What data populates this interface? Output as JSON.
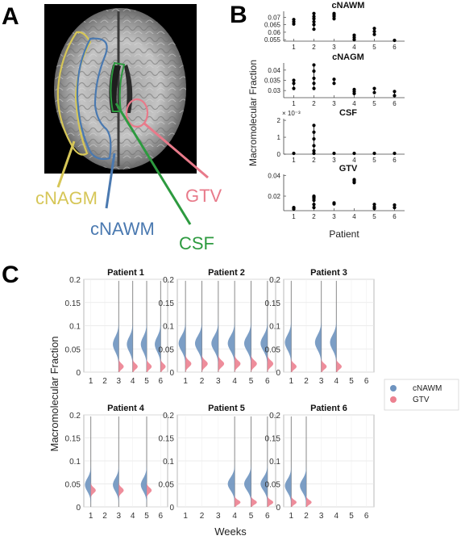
{
  "panel_labels": {
    "a": "A",
    "b": "B",
    "c": "C"
  },
  "panel_a": {
    "labels": [
      {
        "key": "cNAGM",
        "text": "cNAGM",
        "color": "#d6c657"
      },
      {
        "key": "cNAWM",
        "text": "cNAWM",
        "color": "#4a79b0"
      },
      {
        "key": "CSF",
        "text": "CSF",
        "color": "#2d9a3f"
      },
      {
        "key": "GTV",
        "text": "GTV",
        "color": "#e87a8a"
      }
    ]
  },
  "chart_data": [
    {
      "panel": "B",
      "type": "scatter",
      "ylabel": "Macromolecular Fraction",
      "xlabel": "Patient",
      "x_ticks": [
        "1",
        "2",
        "3",
        "4",
        "5",
        "6"
      ],
      "subplots": [
        {
          "title": "cNAWM",
          "ylim": [
            0.054,
            0.074
          ],
          "yticks": [
            "0.055",
            "0.06",
            "0.065",
            "0.07"
          ],
          "ytick_values": [
            0.055,
            0.06,
            0.065,
            0.07
          ],
          "exponent": "",
          "points": [
            [
              1,
              0.0655
            ],
            [
              1,
              0.067
            ],
            [
              1,
              0.0685
            ],
            [
              2,
              0.062
            ],
            [
              2,
              0.065
            ],
            [
              2,
              0.067
            ],
            [
              2,
              0.069
            ],
            [
              2,
              0.0705
            ],
            [
              2,
              0.0725
            ],
            [
              3,
              0.069
            ],
            [
              3,
              0.0705
            ],
            [
              3,
              0.0715
            ],
            [
              3,
              0.0725
            ],
            [
              4,
              0.055
            ],
            [
              4,
              0.0565
            ],
            [
              4,
              0.058
            ],
            [
              5,
              0.0585
            ],
            [
              5,
              0.0605
            ],
            [
              5,
              0.0625
            ],
            [
              6,
              0.054
            ]
          ]
        },
        {
          "title": "cNAGM",
          "ylim": [
            0.0265,
            0.0435
          ],
          "yticks": [
            "0.03",
            "0.035",
            "0.04"
          ],
          "ytick_values": [
            0.03,
            0.035,
            0.04
          ],
          "exponent": "",
          "points": [
            [
              1,
              0.031
            ],
            [
              1,
              0.0335
            ],
            [
              1,
              0.035
            ],
            [
              2,
              0.031
            ],
            [
              2,
              0.0335
            ],
            [
              2,
              0.036
            ],
            [
              2,
              0.0395
            ],
            [
              2,
              0.0425
            ],
            [
              3,
              0.0335
            ],
            [
              3,
              0.0355
            ],
            [
              4,
              0.0285
            ],
            [
              4,
              0.0295
            ],
            [
              4,
              0.0305
            ],
            [
              5,
              0.029
            ],
            [
              5,
              0.031
            ],
            [
              6,
              0.0275
            ],
            [
              6,
              0.0295
            ]
          ]
        },
        {
          "title": "CSF",
          "ylim": [
            0,
            0.0021
          ],
          "yticks": [
            "0",
            "1",
            "2"
          ],
          "ytick_values": [
            0,
            0.001,
            0.002
          ],
          "exponent": "× 10⁻³",
          "points": [
            [
              1,
              2e-05
            ],
            [
              2,
              2e-05
            ],
            [
              2,
              0.0002
            ],
            [
              2,
              0.0005
            ],
            [
              2,
              0.0009
            ],
            [
              2,
              0.0013
            ],
            [
              2,
              0.0017
            ],
            [
              3,
              2e-05
            ],
            [
              4,
              2e-05
            ],
            [
              5,
              2e-05
            ],
            [
              6,
              2e-05
            ]
          ]
        },
        {
          "title": "GTV",
          "ylim": [
            0.006,
            0.041
          ],
          "yticks": [
            "0.02",
            "0.04"
          ],
          "ytick_values": [
            0.02,
            0.04
          ],
          "exponent": "",
          "points": [
            [
              1,
              0.0075
            ],
            [
              1,
              0.0085
            ],
            [
              1,
              0.009
            ],
            [
              2,
              0.009
            ],
            [
              2,
              0.012
            ],
            [
              2,
              0.016
            ],
            [
              2,
              0.018
            ],
            [
              2,
              0.019
            ],
            [
              2,
              0.0195
            ],
            [
              2,
              0.02
            ],
            [
              3,
              0.0125
            ],
            [
              3,
              0.0135
            ],
            [
              4,
              0.033
            ],
            [
              4,
              0.034
            ],
            [
              4,
              0.0355
            ],
            [
              4,
              0.036
            ],
            [
              5,
              0.008
            ],
            [
              5,
              0.0095
            ],
            [
              5,
              0.012
            ],
            [
              6,
              0.009
            ],
            [
              6,
              0.0115
            ]
          ]
        }
      ]
    },
    {
      "panel": "C",
      "type": "area",
      "ylabel": "Macromolecular Fraction",
      "xlabel": "Weeks",
      "x_ticks": [
        "1",
        "2",
        "3",
        "4",
        "5",
        "6"
      ],
      "ylim": [
        0,
        0.2
      ],
      "yticks": [
        "0",
        "0.05",
        "0.1",
        "0.15",
        "0.2"
      ],
      "ytick_values": [
        0,
        0.05,
        0.1,
        0.15,
        0.2
      ],
      "grid": true,
      "legend_position": "right",
      "series": [
        {
          "name": "cNAWM",
          "color": "#6e93bf"
        },
        {
          "name": "GTV",
          "color": "#ec8190"
        }
      ],
      "patients": [
        {
          "title": "Patient 1",
          "weeks": [
            {
              "week": 3,
              "cnawm_peak": 0.06,
              "cnawm_spread": 0.016,
              "gtv_peak": 0.012,
              "gtv_spread": 0.006
            },
            {
              "week": 4,
              "cnawm_peak": 0.06,
              "cnawm_spread": 0.016,
              "gtv_peak": 0.012,
              "gtv_spread": 0.006
            },
            {
              "week": 5,
              "cnawm_peak": 0.06,
              "cnawm_spread": 0.016,
              "gtv_peak": 0.012,
              "gtv_spread": 0.006
            },
            {
              "week": 6,
              "cnawm_peak": 0.06,
              "cnawm_spread": 0.016,
              "gtv_peak": 0.012,
              "gtv_spread": 0.006
            }
          ]
        },
        {
          "title": "Patient 2",
          "weeks": [
            {
              "week": 1,
              "cnawm_peak": 0.062,
              "cnawm_spread": 0.016,
              "gtv_peak": 0.018,
              "gtv_spread": 0.007
            },
            {
              "week": 2,
              "cnawm_peak": 0.062,
              "cnawm_spread": 0.016,
              "gtv_peak": 0.018,
              "gtv_spread": 0.007
            },
            {
              "week": 3,
              "cnawm_peak": 0.062,
              "cnawm_spread": 0.016,
              "gtv_peak": 0.018,
              "gtv_spread": 0.007
            },
            {
              "week": 4,
              "cnawm_peak": 0.062,
              "cnawm_spread": 0.016,
              "gtv_peak": 0.018,
              "gtv_spread": 0.007
            },
            {
              "week": 5,
              "cnawm_peak": 0.062,
              "cnawm_spread": 0.016,
              "gtv_peak": 0.018,
              "gtv_spread": 0.007
            },
            {
              "week": 6,
              "cnawm_peak": 0.062,
              "cnawm_spread": 0.016,
              "gtv_peak": 0.018,
              "gtv_spread": 0.007
            }
          ]
        },
        {
          "title": "Patient 3",
          "weeks": [
            {
              "week": 1,
              "cnawm_peak": 0.064,
              "cnawm_spread": 0.016,
              "gtv_peak": 0.012,
              "gtv_spread": 0.006
            },
            {
              "week": 3,
              "cnawm_peak": 0.064,
              "cnawm_spread": 0.016,
              "gtv_peak": 0.012,
              "gtv_spread": 0.006
            },
            {
              "week": 4,
              "cnawm_peak": 0.064,
              "cnawm_spread": 0.016,
              "gtv_peak": 0.012,
              "gtv_spread": 0.006
            }
          ]
        },
        {
          "title": "Patient 4",
          "weeks": [
            {
              "week": 1,
              "cnawm_peak": 0.048,
              "cnawm_spread": 0.014,
              "gtv_peak": 0.036,
              "gtv_spread": 0.006
            },
            {
              "week": 3,
              "cnawm_peak": 0.048,
              "cnawm_spread": 0.014,
              "gtv_peak": 0.036,
              "gtv_spread": 0.006
            },
            {
              "week": 5,
              "cnawm_peak": 0.048,
              "cnawm_spread": 0.014,
              "gtv_peak": 0.036,
              "gtv_spread": 0.006
            }
          ]
        },
        {
          "title": "Patient 5",
          "weeks": [
            {
              "week": 4,
              "cnawm_peak": 0.05,
              "cnawm_spread": 0.014,
              "gtv_peak": 0.01,
              "gtv_spread": 0.005
            },
            {
              "week": 5,
              "cnawm_peak": 0.05,
              "cnawm_spread": 0.014,
              "gtv_peak": 0.01,
              "gtv_spread": 0.005
            },
            {
              "week": 6,
              "cnawm_peak": 0.05,
              "cnawm_spread": 0.014,
              "gtv_peak": 0.01,
              "gtv_spread": 0.005
            }
          ]
        },
        {
          "title": "Patient 6",
          "weeks": [
            {
              "week": 1,
              "cnawm_peak": 0.046,
              "cnawm_spread": 0.014,
              "gtv_peak": 0.01,
              "gtv_spread": 0.005
            },
            {
              "week": 2,
              "cnawm_peak": 0.046,
              "cnawm_spread": 0.014,
              "gtv_peak": 0.01,
              "gtv_spread": 0.005
            }
          ]
        }
      ]
    }
  ]
}
